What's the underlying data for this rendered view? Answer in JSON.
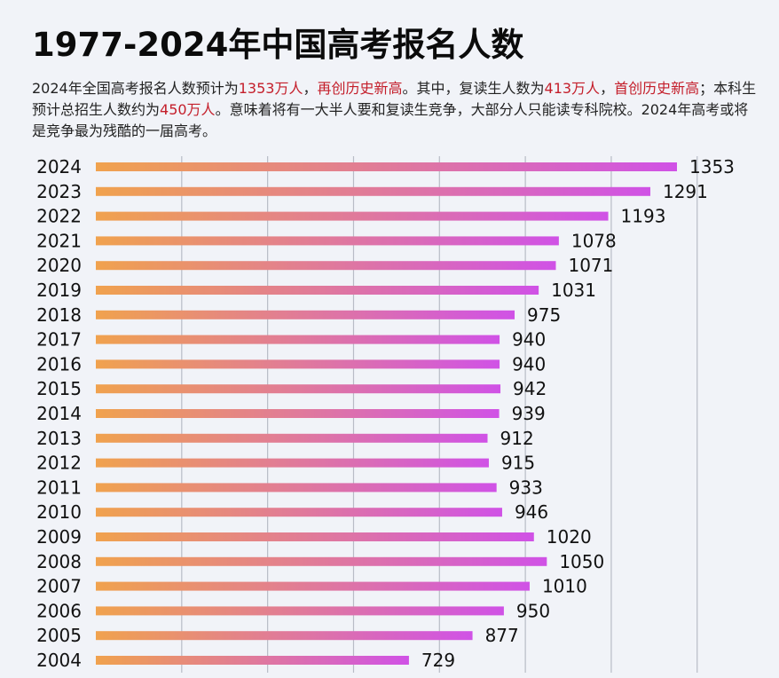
{
  "title": "1977-2024年中国高考报名人数",
  "description": {
    "p1": "2024年全国高考报名人数预计为",
    "v1": "1353万人",
    "p2": "，",
    "v2": "再创历史新高",
    "p3": "。其中，复读生人数为",
    "v3": "413万人",
    "p4": "，",
    "v4": "首创历史新高",
    "p5": "；本科生预计总招生人数约为",
    "v5": "450万人",
    "p6": "。意味着将有一大半人要和复读生竞争，大部分人只能读专科院校。2024年高考或将是竞争最为残酷的一届高考。"
  },
  "colors": {
    "bar_start": "#f0a24e",
    "bar_end": "#d052e6",
    "highlight": "#c41e2a",
    "grid": "#b8bcc6"
  },
  "chart_data": {
    "type": "bar",
    "orientation": "horizontal",
    "title": "1977-2024年中国高考报名人数",
    "categories": [
      "2024",
      "2023",
      "2022",
      "2021",
      "2020",
      "2019",
      "2018",
      "2017",
      "2016",
      "2015",
      "2014",
      "2013",
      "2012",
      "2011",
      "2010",
      "2009",
      "2008",
      "2007",
      "2006",
      "2005",
      "2004"
    ],
    "values": [
      1353,
      1291,
      1193,
      1078,
      1071,
      1031,
      975,
      940,
      940,
      942,
      939,
      912,
      915,
      933,
      946,
      1020,
      1050,
      1010,
      950,
      877,
      729
    ],
    "xlim": [
      0,
      1400
    ],
    "grid": true
  }
}
